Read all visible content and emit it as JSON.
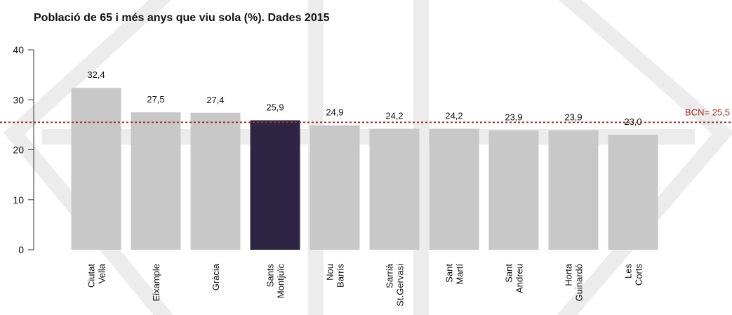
{
  "chart_data": {
    "type": "bar",
    "title": "Població de 65 i més anys que viu sola (%). Dades 2015",
    "categories": [
      [
        "Ciutat",
        "Vella"
      ],
      [
        "Eixample"
      ],
      [
        "Gràcia"
      ],
      [
        "Sants",
        "Montjuïc"
      ],
      [
        "Nou",
        "Barris"
      ],
      [
        "Sarrià",
        "St.Gervasi"
      ],
      [
        "Sant",
        "Martí"
      ],
      [
        "Sant",
        "Andreu"
      ],
      [
        "Horta",
        "Guinardó"
      ],
      [
        "Les",
        "Corts"
      ]
    ],
    "values": [
      32.4,
      27.5,
      27.4,
      25.9,
      24.9,
      24.2,
      24.2,
      23.9,
      23.9,
      23.0
    ],
    "value_labels": [
      "32,4",
      "27,5",
      "27,4",
      "25,9",
      "24,9",
      "24,2",
      "24,2",
      "23,9",
      "23,9",
      "23,0"
    ],
    "colors": [
      "#c8c8c8",
      "#c8c8c8",
      "#c8c8c8",
      "#2e2545",
      "#c8c8c8",
      "#c8c8c8",
      "#c8c8c8",
      "#c8c8c8",
      "#c8c8c8",
      "#c8c8c8"
    ],
    "ylim": [
      0,
      40
    ],
    "yticks": [
      0,
      10,
      20,
      30,
      40
    ],
    "reference_line": {
      "value": 25.5,
      "label": "BCN= 25,5",
      "color": "#a0302a"
    }
  }
}
